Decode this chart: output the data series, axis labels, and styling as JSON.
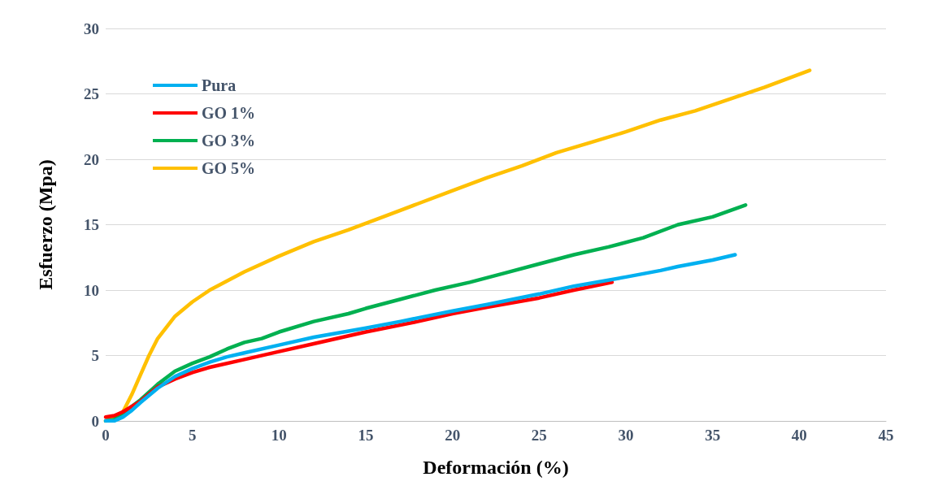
{
  "chart_data": {
    "type": "line",
    "xlabel": "Deformación (%)",
    "ylabel": "Esfuerzo (Mpa)",
    "xlim": [
      0,
      45
    ],
    "xticks": [
      0,
      5,
      10,
      15,
      20,
      25,
      30,
      35,
      40,
      45
    ],
    "ylim": [
      0,
      30
    ],
    "yticks": [
      0,
      5,
      10,
      15,
      20,
      25,
      30
    ],
    "grid": "y",
    "legend": "top left",
    "marker": "none",
    "line_style": "solid",
    "series": [
      {
        "name": "Pura",
        "color": "#00b0f0",
        "x": [
          0,
          0.5,
          1,
          1.5,
          2,
          3,
          4,
          5,
          6,
          7,
          8,
          10,
          12,
          15,
          17,
          20,
          22,
          25,
          27,
          30,
          32,
          33,
          35,
          36.3
        ],
        "values": [
          0,
          0,
          0.3,
          0.8,
          1.4,
          2.5,
          3.4,
          4,
          4.5,
          4.9,
          5.2,
          5.8,
          6.4,
          7.1,
          7.6,
          8.4,
          8.9,
          9.7,
          10.3,
          11,
          11.5,
          11.8,
          12.3,
          12.7
        ]
      },
      {
        "name": "GO 1%",
        "color": "#ff0000",
        "x": [
          0,
          0.5,
          1,
          2,
          3,
          4,
          5,
          6,
          8,
          10,
          12,
          15,
          18,
          20,
          22,
          25,
          27,
          29.2
        ],
        "values": [
          0.3,
          0.4,
          0.7,
          1.5,
          2.6,
          3.2,
          3.7,
          4.1,
          4.7,
          5.3,
          5.9,
          6.8,
          7.6,
          8.2,
          8.7,
          9.4,
          10,
          10.6
        ]
      },
      {
        "name": "GO 3%",
        "color": "#00b050",
        "x": [
          0,
          0.5,
          1,
          2,
          3,
          4,
          5,
          6,
          7,
          8,
          9,
          10,
          12,
          14,
          15,
          17,
          19,
          21,
          23,
          25,
          27,
          29,
          31,
          33,
          35,
          36.9
        ],
        "values": [
          0,
          0.1,
          0.6,
          1.6,
          2.8,
          3.8,
          4.4,
          4.9,
          5.5,
          6,
          6.3,
          6.8,
          7.6,
          8.2,
          8.6,
          9.3,
          10,
          10.6,
          11.3,
          12,
          12.7,
          13.3,
          14,
          15,
          15.6,
          16.5
        ]
      },
      {
        "name": "GO 5%",
        "color": "#ffc000",
        "x": [
          0,
          0.5,
          1,
          1.5,
          2,
          2.5,
          3,
          4,
          5,
          6,
          8,
          10,
          12,
          14,
          16,
          18,
          20,
          22,
          24,
          26,
          28,
          30,
          32,
          34,
          36,
          38,
          40.6
        ],
        "values": [
          0,
          0.2,
          0.7,
          2,
          3.5,
          5,
          6.3,
          8,
          9.1,
          10,
          11.4,
          12.6,
          13.7,
          14.6,
          15.6,
          16.6,
          17.6,
          18.6,
          19.5,
          20.5,
          21.3,
          22.1,
          23,
          23.7,
          24.6,
          25.5,
          26.8
        ]
      }
    ]
  }
}
